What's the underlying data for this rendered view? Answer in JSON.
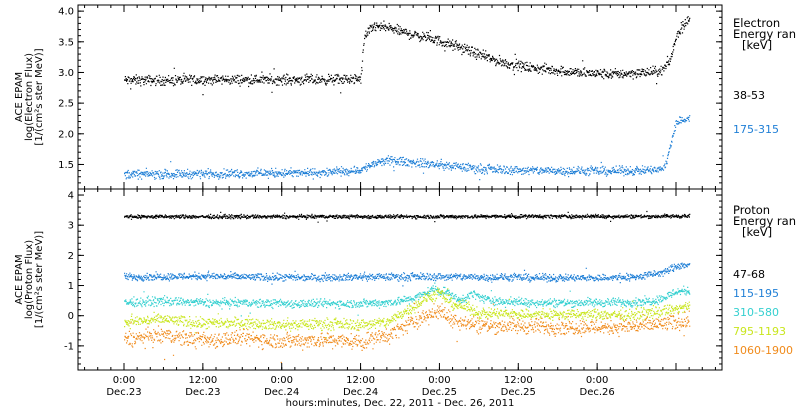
{
  "chart_data": [
    {
      "type": "scatter",
      "panel": "electron",
      "ylabel_lines": [
        "ACE EPAM",
        "log(Electron Flux)",
        "[1/(cm²s ster MeV)]"
      ],
      "ylim": [
        1.1,
        4.1
      ],
      "yticks": [
        1.5,
        2.0,
        2.5,
        3.0,
        3.5,
        4.0
      ],
      "ytick_labels": [
        "1.5",
        "2.0",
        "2.5",
        "3.0",
        "3.5",
        "4.0"
      ],
      "legend_title_lines": [
        "Electron",
        "Energy ran",
        "[keV]"
      ],
      "series": [
        {
          "name": "38-53",
          "color": "#000000",
          "x": [
            0.0,
            6.0,
            12.0,
            18.0,
            24.0,
            30.0,
            36.0,
            36.5,
            38.0,
            40.0,
            42.0,
            44.0,
            46.0,
            48.0,
            50.0,
            52.0,
            54.0,
            56.0,
            58.0,
            60.0,
            62.0,
            66.0,
            70.0,
            74.0,
            78.0,
            81.0,
            82.0,
            83.0,
            84.0,
            85.0,
            86.0
          ],
          "y": [
            2.88,
            2.88,
            2.89,
            2.89,
            2.89,
            2.89,
            2.9,
            3.6,
            3.76,
            3.74,
            3.68,
            3.62,
            3.58,
            3.52,
            3.45,
            3.38,
            3.3,
            3.22,
            3.16,
            3.12,
            3.08,
            3.04,
            3.0,
            2.98,
            3.0,
            3.02,
            3.05,
            3.2,
            3.6,
            3.8,
            3.86
          ],
          "noise": 0.04
        },
        {
          "name": "175-315",
          "color": "#1f7fd6",
          "x": [
            0.0,
            6.0,
            12.0,
            18.0,
            24.0,
            30.0,
            36.0,
            38.0,
            40.0,
            42.0,
            44.0,
            46.0,
            48.0,
            50.0,
            52.0,
            54.0,
            58.0,
            62.0,
            66.0,
            70.0,
            74.0,
            78.0,
            81.5,
            82.5,
            83.0,
            84.0,
            86.0
          ],
          "y": [
            1.35,
            1.35,
            1.36,
            1.36,
            1.37,
            1.37,
            1.42,
            1.52,
            1.57,
            1.56,
            1.54,
            1.52,
            1.5,
            1.48,
            1.46,
            1.44,
            1.42,
            1.41,
            1.41,
            1.4,
            1.4,
            1.41,
            1.42,
            1.52,
            1.8,
            2.2,
            2.27
          ],
          "noise": 0.035
        }
      ]
    },
    {
      "type": "scatter",
      "panel": "proton",
      "ylabel_lines": [
        "ACE EPAM",
        "log(Proton Flux)",
        "[1/(cm²s ster MeV)]"
      ],
      "ylim": [
        -1.8,
        4.2
      ],
      "yticks": [
        -1,
        0,
        1,
        2,
        3,
        4
      ],
      "ytick_labels": [
        "-1",
        "0",
        "1",
        "2",
        "3",
        "4"
      ],
      "legend_title_lines": [
        "Proton",
        "Energy ran",
        "[keV]"
      ],
      "series": [
        {
          "name": "47-68",
          "color": "#000000",
          "x": [
            0.0,
            20.0,
            40.0,
            60.0,
            80.0,
            86.0
          ],
          "y": [
            3.3,
            3.3,
            3.3,
            3.31,
            3.31,
            3.32
          ],
          "noise": 0.03
        },
        {
          "name": "115-195",
          "color": "#1f7fd6",
          "x": [
            0.0,
            12.0,
            24.0,
            36.0,
            42.0,
            48.0,
            54.0,
            60.0,
            66.0,
            72.0,
            78.0,
            82.0,
            84.0,
            86.0
          ],
          "y": [
            1.3,
            1.33,
            1.28,
            1.3,
            1.31,
            1.31,
            1.3,
            1.28,
            1.27,
            1.27,
            1.3,
            1.45,
            1.65,
            1.72
          ],
          "noise": 0.06
        },
        {
          "name": "310-580",
          "color": "#35d0d0",
          "x": [
            0.0,
            6.0,
            12.0,
            24.0,
            36.0,
            40.0,
            44.0,
            47.0,
            49.0,
            51.0,
            53.0,
            55.0,
            58.0,
            64.0,
            70.0,
            76.0,
            80.0,
            82.0,
            84.0,
            86.0
          ],
          "y": [
            0.45,
            0.5,
            0.45,
            0.42,
            0.42,
            0.45,
            0.58,
            0.9,
            0.8,
            0.5,
            0.75,
            0.55,
            0.48,
            0.45,
            0.45,
            0.46,
            0.5,
            0.6,
            0.82,
            0.85
          ],
          "noise": 0.07
        },
        {
          "name": "795-1193",
          "color": "#c9e61e",
          "x": [
            0.0,
            6.0,
            12.0,
            18.0,
            24.0,
            30.0,
            36.0,
            40.0,
            43.0,
            46.0,
            48.0,
            50.0,
            52.0,
            54.0,
            58.0,
            64.0,
            70.0,
            76.0,
            80.0,
            84.0,
            86.0
          ],
          "y": [
            -0.2,
            -0.1,
            -0.25,
            -0.2,
            -0.3,
            -0.25,
            -0.28,
            -0.2,
            0.2,
            0.6,
            0.75,
            0.4,
            0.3,
            0.1,
            0.08,
            0.05,
            0.05,
            0.05,
            0.1,
            0.25,
            0.3
          ],
          "noise": 0.09
        },
        {
          "name": "1060-1900",
          "color": "#f08a1a",
          "x": [
            0.0,
            6.0,
            12.0,
            18.0,
            24.0,
            30.0,
            36.0,
            40.0,
            43.0,
            46.0,
            48.0,
            50.0,
            52.0,
            54.0,
            58.0,
            64.0,
            70.0,
            76.0,
            80.0,
            84.0,
            86.0
          ],
          "y": [
            -0.75,
            -0.65,
            -0.8,
            -0.72,
            -0.82,
            -0.78,
            -0.85,
            -0.65,
            -0.3,
            0.05,
            0.15,
            -0.1,
            -0.2,
            -0.3,
            -0.32,
            -0.35,
            -0.36,
            -0.35,
            -0.3,
            -0.2,
            -0.15
          ],
          "noise": 0.13
        }
      ]
    }
  ],
  "x_axis": {
    "range_hours": [
      -7,
      91
    ],
    "ticks_hours": [
      0,
      12,
      24,
      36,
      48,
      60,
      72,
      84
    ],
    "minor_step_hours": 2,
    "tick_time_labels": [
      "0:00",
      "12:00",
      "0:00",
      "12:00",
      "0:00",
      "12:00",
      "0:00"
    ],
    "tick_date_labels": [
      "Dec.23",
      "Dec.23",
      "Dec.24",
      "Dec.24",
      "Dec.25",
      "Dec.25",
      "Dec.26"
    ],
    "tick_label_hours": [
      0,
      12,
      24,
      36,
      48,
      60,
      72
    ],
    "title": "hours:minutes, Dec. 22, 2011 - Dec. 26, 2011"
  },
  "colors": {
    "axis": "#000000",
    "background": "#ffffff"
  }
}
